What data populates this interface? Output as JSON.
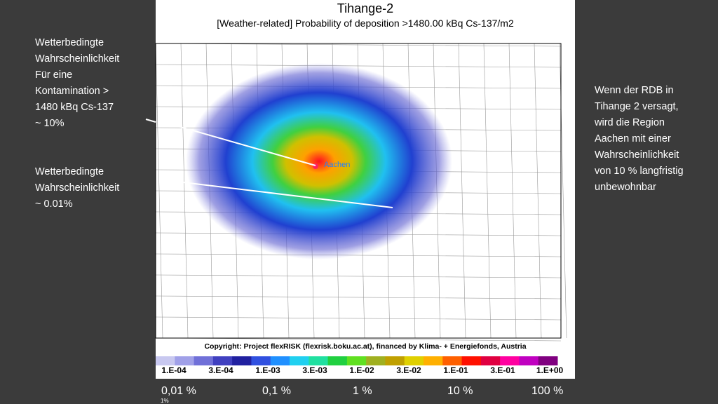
{
  "map": {
    "title": "Tihange-2",
    "subtitle": "[Weather-related] Probability of deposition >1480.00 kBq Cs-137/m2",
    "city": "Aachen",
    "copyright": "Copyright: Project flexRISK (flexrisk.boku.ac.at), financed by Klima- + Energiefonds, Austria",
    "colorbar": {
      "colors": [
        "#c8c8f0",
        "#a0a0e8",
        "#7070d8",
        "#4040c0",
        "#2020a0",
        "#3050e0",
        "#2090ff",
        "#20d0f0",
        "#20e0a0",
        "#20d040",
        "#60e020",
        "#a0b020",
        "#c0a000",
        "#e0d000",
        "#ffb000",
        "#ff6000",
        "#ff1000",
        "#e00040",
        "#ff00a0",
        "#c000c0",
        "#800080"
      ],
      "labels": [
        "1.E-04",
        "3.E-04",
        "1.E-03",
        "3.E-03",
        "1.E-02",
        "3.E-02",
        "1.E-01",
        "3.E-01",
        "1.E+00"
      ]
    },
    "percent_labels": [
      "0,01  %",
      "0,1 %",
      "1 %",
      "10 %",
      "100 %"
    ],
    "cut_label": "1%"
  },
  "notes": {
    "left_top": [
      "Wetterbedingte",
      "Wahrscheinlichkeit",
      "Für eine",
      "Kontamination >",
      "1480 kBq Cs-137",
      "~ 10%"
    ],
    "left_bottom": [
      "Wetterbedingte",
      "Wahrscheinlichkeit",
      "~ 0.01%"
    ],
    "right": [
      "Wenn der  RDB in",
      "Tihange 2 versagt,",
      "wird die Region",
      "Aachen mit einer",
      "Wahrscheinlichkeit",
      "von 10 % langfristig",
      "unbewohnbar"
    ]
  }
}
